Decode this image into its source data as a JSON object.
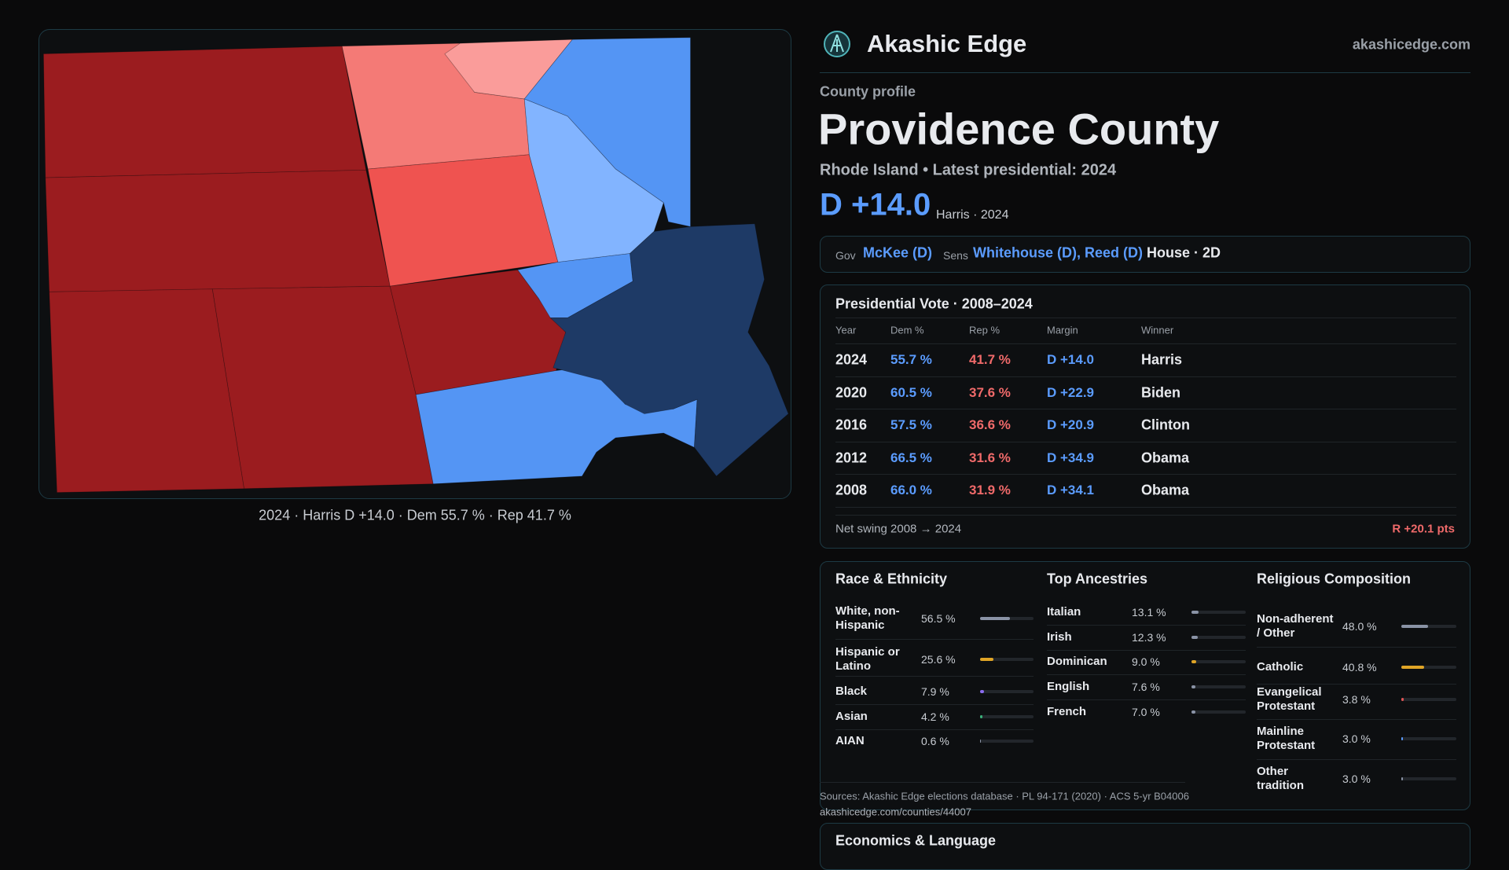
{
  "map_caption": "2024 · Harris D +14.0 · Dem 55.7 % · Rep 41.7 %",
  "header": {
    "brand": "Akashic Edge",
    "site": "akashicedge.com"
  },
  "profile": {
    "kicker": "County profile",
    "title": "Providence County",
    "subtitle": "Rhode Island • Latest presidential: 2024",
    "margin": "D +14.0",
    "margin_note": "Harris · 2024"
  },
  "officials": {
    "gov_label": "Gov",
    "gov": "McKee (D)",
    "sens_label": "Sens",
    "sens": "Whitehouse (D), Reed (D)",
    "house": "House · 2D"
  },
  "table": {
    "title": "Presidential Vote · 2008–2024",
    "columns": [
      "Year",
      "Dem %",
      "Rep %",
      "Margin",
      "Winner"
    ],
    "rows": [
      [
        "2024",
        "55.7 %",
        "41.7 %",
        "D +14.0",
        "Harris"
      ],
      [
        "2020",
        "60.5 %",
        "37.6 %",
        "D +22.9",
        "Biden"
      ],
      [
        "2016",
        "57.5 %",
        "36.6 %",
        "D +20.9",
        "Clinton"
      ],
      [
        "2012",
        "66.5 %",
        "31.6 %",
        "D +34.9",
        "Obama"
      ],
      [
        "2008",
        "66.0 %",
        "31.9 %",
        "D +34.1",
        "Obama"
      ]
    ],
    "swing_label": "Net swing 2008 → 2024",
    "swing": "R +20.1 pts"
  },
  "demographics": [
    {
      "title": "Race & Ethnicity",
      "items": [
        {
          "name": "White, non-Hispanic",
          "value": 56.5,
          "label": "56.5 %",
          "color": "#8a93a6"
        },
        {
          "name": "Hispanic or Latino",
          "value": 25.6,
          "label": "25.6 %",
          "color": "#e0a526"
        },
        {
          "name": "Black",
          "value": 7.9,
          "label": "7.9 %",
          "color": "#8b6cf0"
        },
        {
          "name": "Asian",
          "value": 4.2,
          "label": "4.2 %",
          "color": "#3bb07a"
        },
        {
          "name": "AIAN",
          "value": 0.6,
          "label": "0.6 %",
          "color": "#8a93a6"
        }
      ]
    },
    {
      "title": "Top Ancestries",
      "items": [
        {
          "name": "Italian",
          "value": 13.1,
          "label": "13.1 %",
          "color": "#8a93a6"
        },
        {
          "name": "Irish",
          "value": 12.3,
          "label": "12.3 %",
          "color": "#8a93a6"
        },
        {
          "name": "Dominican",
          "value": 9.0,
          "label": "9.0 %",
          "color": "#e0a526"
        },
        {
          "name": "English",
          "value": 7.6,
          "label": "7.6 %",
          "color": "#8a93a6"
        },
        {
          "name": "French",
          "value": 7.0,
          "label": "7.0 %",
          "color": "#8a93a6"
        }
      ]
    },
    {
      "title": "Religious Composition",
      "items": [
        {
          "name": "Non-adherent / Other",
          "value": 48.0,
          "label": "48.0 %",
          "color": "#8a93a6"
        },
        {
          "name": "Catholic",
          "value": 40.8,
          "label": "40.8 %",
          "color": "#e0a526"
        },
        {
          "name": "Evangelical Protestant",
          "value": 3.8,
          "label": "3.8 %",
          "color": "#e05555"
        },
        {
          "name": "Mainline Protestant",
          "value": 3.0,
          "label": "3.0 %",
          "color": "#5b9cff"
        },
        {
          "name": "Other tradition",
          "value": 3.0,
          "label": "3.0 %",
          "color": "#8a93a6"
        }
      ]
    }
  ],
  "footer": {
    "sources": "Sources: Akashic Edge elections database · PL 94-171 (2020) · ACS 5-yr B04006",
    "url": "akashicedge.com/counties/44007"
  },
  "next_section": "Economics & Language"
}
